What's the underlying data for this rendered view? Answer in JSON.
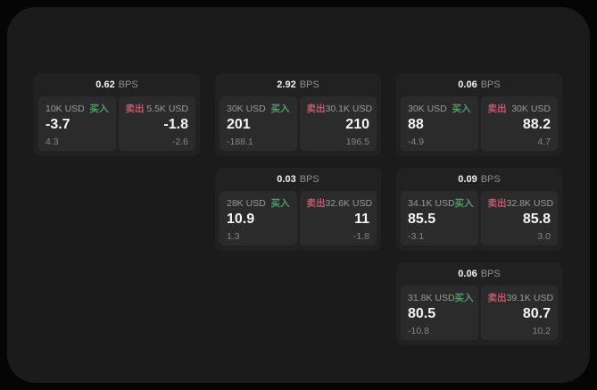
{
  "labels": {
    "bps_unit": "BPS",
    "buy": "买入",
    "sell": "卖出"
  },
  "colors": {
    "buy": "#4e9e68",
    "sell": "#c9556a",
    "panel_bg": "#1b1b1b",
    "card_bg": "#212121",
    "subpanel_bg": "#2b2b2b"
  },
  "cards": [
    {
      "row": 1,
      "col": 1,
      "bps": "0.62",
      "buy": {
        "size": "10K USD",
        "price": "-3.7",
        "delta": "4.3"
      },
      "sell": {
        "size": "5.5K USD",
        "price": "-1.8",
        "delta": "-2.6"
      }
    },
    {
      "row": 1,
      "col": 2,
      "bps": "2.92",
      "buy": {
        "size": "30K USD",
        "price": "201",
        "delta": "-188.1"
      },
      "sell": {
        "size": "30.1K USD",
        "price": "210",
        "delta": "196.5"
      }
    },
    {
      "row": 1,
      "col": 3,
      "bps": "0.06",
      "buy": {
        "size": "30K USD",
        "price": "88",
        "delta": "-4.9"
      },
      "sell": {
        "size": "30K USD",
        "price": "88.2",
        "delta": "4.7"
      }
    },
    {
      "row": 2,
      "col": 2,
      "bps": "0.03",
      "buy": {
        "size": "28K USD",
        "price": "10.9",
        "delta": "1.3"
      },
      "sell": {
        "size": "32.6K USD",
        "price": "11",
        "delta": "-1.8"
      }
    },
    {
      "row": 2,
      "col": 3,
      "bps": "0.09",
      "buy": {
        "size": "34.1K USD",
        "price": "85.5",
        "delta": "-3.1"
      },
      "sell": {
        "size": "32.8K USD",
        "price": "85.8",
        "delta": "3.0"
      }
    },
    {
      "row": 3,
      "col": 3,
      "bps": "0.06",
      "buy": {
        "size": "31.8K USD",
        "price": "80.5",
        "delta": "-10.8"
      },
      "sell": {
        "size": "39.1K USD",
        "price": "80.7",
        "delta": "10.2"
      }
    }
  ]
}
